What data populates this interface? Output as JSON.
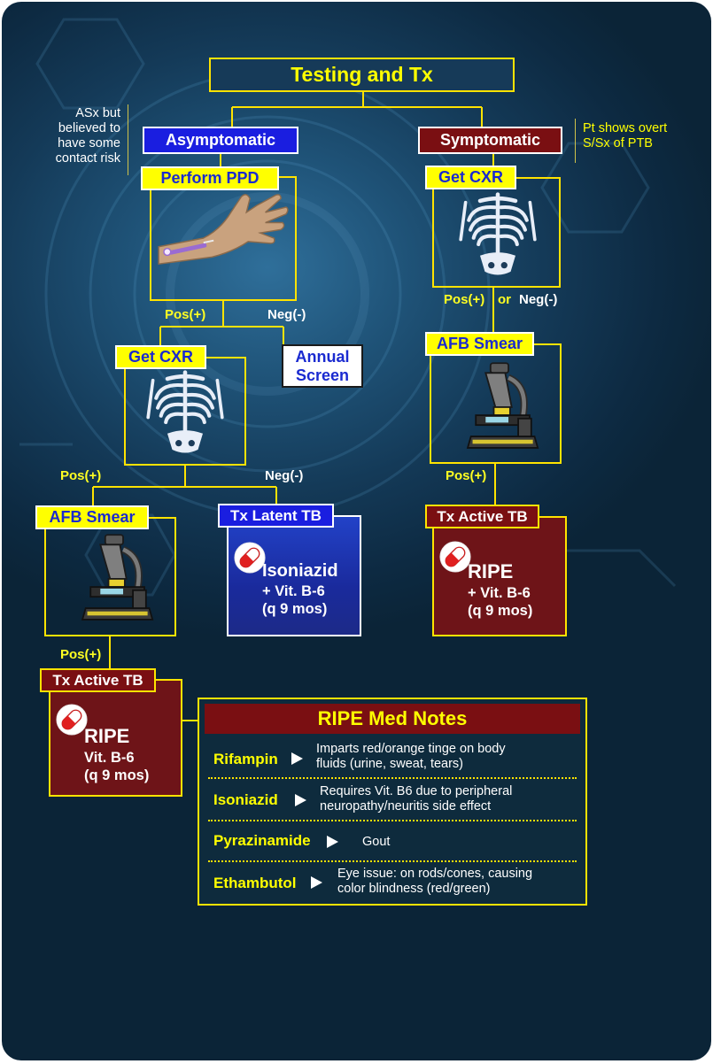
{
  "title": "Testing and Tx",
  "branches": {
    "asymptomatic": {
      "label": "Asymptomatic",
      "note": [
        "ASx but",
        "believed to",
        "have some",
        "contact risk"
      ]
    },
    "symptomatic": {
      "label": "Symptomatic",
      "note": [
        "Pt shows overt",
        "S/Sx of PTB"
      ]
    }
  },
  "steps": {
    "perform_ppd": "Perform PPD",
    "get_cxr_left": "Get CXR",
    "annual_screen": [
      "Annual",
      "Screen"
    ],
    "afb_smear_left": "AFB Smear",
    "tx_latent": "Tx Latent TB",
    "tx_active_left": "Tx Active TB",
    "get_cxr_right": "Get CXR",
    "afb_smear_right": "AFB Smear",
    "tx_active_right": "Tx Active TB"
  },
  "edge_labels": {
    "ppd_pos": "Pos(+)",
    "ppd_neg": "Neg(-)",
    "cxr_pos": "Pos(+)",
    "cxr_neg": "Neg(-)",
    "afb_left_pos": "Pos(+)",
    "right_cxr_pos": "Pos(+)",
    "right_cxr_or": "or",
    "right_cxr_neg": "Neg(-)",
    "afb_right_pos": "Pos(+)"
  },
  "treatments": {
    "latent": {
      "drug": "Isoniazid",
      "line2": "+ Vit. B-6",
      "line3": "(q 9 mos)"
    },
    "active_right": {
      "drug": "RIPE",
      "line2": "+ Vit. B-6",
      "line3": "(q 9 mos)"
    },
    "active_left": {
      "drug": "RIPE",
      "line2": "Vit. B-6",
      "line3": "(q 9 mos)"
    }
  },
  "med_notes": {
    "title": "RIPE Med Notes",
    "items": [
      {
        "drug": "Rifampin",
        "desc": [
          "Imparts red/orange tinge on body",
          "fluids (urine, sweat, tears)"
        ]
      },
      {
        "drug": "Isoniazid",
        "desc": [
          "Requires Vit. B6 due to peripheral",
          "neuropathy/neuritis side effect"
        ]
      },
      {
        "drug": "Pyrazinamide",
        "desc": [
          "Gout"
        ]
      },
      {
        "drug": "Ethambutol",
        "desc": [
          "Eye issue: on rods/cones, causing",
          "color blindness (red/green)"
        ]
      }
    ]
  },
  "icons": {
    "arm": "arm-injection-icon",
    "xray": "chest-xray-icon",
    "microscope": "microscope-icon",
    "pill": "pill-capsule-icon",
    "arrow": "play-arrow-icon"
  },
  "colors": {
    "frame": "#ffe300",
    "tag_yellow": "#ffff00",
    "tag_text_blue": "#1a2ad0",
    "maroon": "#7a0f12",
    "blue_box": "#1a1ee0",
    "background": "#143a58"
  }
}
